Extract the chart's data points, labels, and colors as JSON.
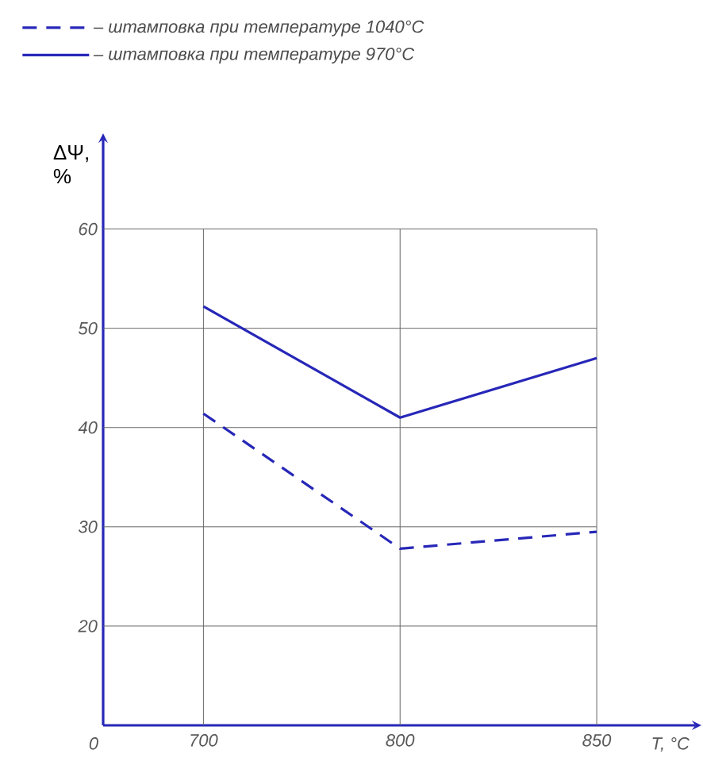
{
  "chart_data": {
    "type": "line",
    "xlabel": "T, °C",
    "ylabel": "ΔΨ, %",
    "categories": [
      "700",
      "800",
      "850"
    ],
    "ylim": [
      10,
      69
    ],
    "yticks": [
      20,
      30,
      40,
      50,
      60
    ],
    "grid": true,
    "legend": "top",
    "marker": "none",
    "annotations": [
      "0"
    ],
    "series": [
      {
        "name": "– штамповка при температуре 1040°C",
        "color": "#2727b8",
        "line_style": "dashed",
        "values": [
          41.4,
          27.8,
          29.5
        ]
      },
      {
        "name": "– штамповка при температуре 970°C",
        "color": "#2727b8",
        "line_style": "solid",
        "values": [
          52.2,
          41,
          47
        ]
      }
    ]
  }
}
